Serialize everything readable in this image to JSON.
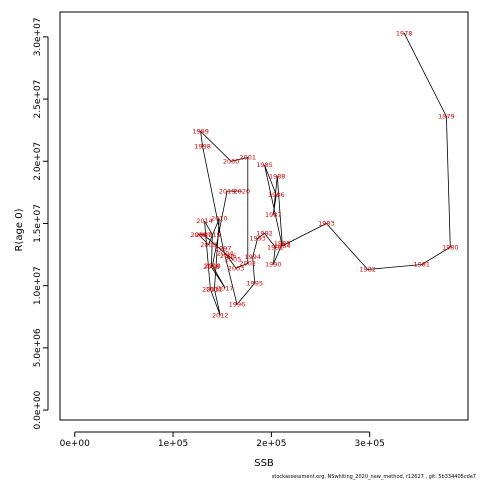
{
  "chart_data": {
    "type": "line",
    "xlabel": "SSB",
    "ylabel": "R(age 0)",
    "xlim": [
      -15000,
      400000
    ],
    "ylim": [
      -800000,
      32000000
    ],
    "x_ticks": [
      {
        "value": 0,
        "label": "0e+00"
      },
      {
        "value": 100000,
        "label": "1e+05"
      },
      {
        "value": 200000,
        "label": "2e+05"
      },
      {
        "value": 300000,
        "label": "3e+05"
      }
    ],
    "y_ticks": [
      {
        "value": 0,
        "label": "0.0e+00"
      },
      {
        "value": 5000000,
        "label": "5.0e+06"
      },
      {
        "value": 10000000,
        "label": "1.0e+07"
      },
      {
        "value": 15000000,
        "label": "1.5e+07"
      },
      {
        "value": 20000000,
        "label": "2.0e+07"
      },
      {
        "value": 25000000,
        "label": "2.5e+07"
      },
      {
        "value": 30000000,
        "label": "3.0e+07"
      }
    ],
    "points": [
      {
        "label": "1978",
        "x": 335000,
        "y": 30300000
      },
      {
        "label": "1979",
        "x": 378000,
        "y": 23600000
      },
      {
        "label": "1980",
        "x": 382000,
        "y": 13100000
      },
      {
        "label": "1981",
        "x": 353000,
        "y": 11700000
      },
      {
        "label": "1982",
        "x": 298000,
        "y": 11300000
      },
      {
        "label": "1983",
        "x": 256000,
        "y": 15000000
      },
      {
        "label": "1984",
        "x": 211000,
        "y": 13200000
      },
      {
        "label": "1985",
        "x": 193000,
        "y": 19700000
      },
      {
        "label": "1986",
        "x": 205000,
        "y": 17300000
      },
      {
        "label": "1987",
        "x": 202000,
        "y": 15700000
      },
      {
        "label": "1988",
        "x": 206000,
        "y": 18800000
      },
      {
        "label": "1989",
        "x": 211000,
        "y": 13400000
      },
      {
        "label": "1990",
        "x": 202000,
        "y": 11700000
      },
      {
        "label": "1991",
        "x": 204000,
        "y": 13100000
      },
      {
        "label": "1992",
        "x": 193000,
        "y": 14200000
      },
      {
        "label": "1993",
        "x": 186000,
        "y": 13800000
      },
      {
        "label": "1994",
        "x": 181000,
        "y": 12300000
      },
      {
        "label": "1995",
        "x": 183000,
        "y": 10200000
      },
      {
        "label": "1996",
        "x": 165000,
        "y": 8500000
      },
      {
        "label": "1997",
        "x": 151000,
        "y": 13000000
      },
      {
        "label": "1998",
        "x": 130000,
        "y": 21200000
      },
      {
        "label": "1999",
        "x": 128000,
        "y": 22400000
      },
      {
        "label": "2000",
        "x": 159000,
        "y": 20000000
      },
      {
        "label": "2001",
        "x": 176000,
        "y": 20300000
      },
      {
        "label": "2002",
        "x": 176000,
        "y": 11800000
      },
      {
        "label": "2003",
        "x": 164000,
        "y": 11400000
      },
      {
        "label": "2004",
        "x": 153000,
        "y": 12600000
      },
      {
        "label": "2005",
        "x": 161000,
        "y": 12100000
      },
      {
        "label": "2006",
        "x": 156000,
        "y": 12400000
      },
      {
        "label": "2007",
        "x": 131000,
        "y": 14100000
      },
      {
        "label": "2008",
        "x": 126000,
        "y": 14100000
      },
      {
        "label": "2009",
        "x": 136000,
        "y": 13300000
      },
      {
        "label": "2010",
        "x": 147000,
        "y": 15400000
      },
      {
        "label": "2011",
        "x": 142000,
        "y": 9700000
      },
      {
        "label": "2012",
        "x": 148000,
        "y": 7600000
      },
      {
        "label": "2013",
        "x": 138000,
        "y": 9700000
      },
      {
        "label": "2014",
        "x": 132000,
        "y": 15200000
      },
      {
        "label": "2015",
        "x": 140000,
        "y": 14100000
      },
      {
        "label": "2016",
        "x": 139000,
        "y": 11500000
      },
      {
        "label": "2017",
        "x": 153000,
        "y": 9800000
      },
      {
        "label": "2018",
        "x": 140000,
        "y": 11600000
      },
      {
        "label": "2019",
        "x": 155000,
        "y": 17600000
      },
      {
        "label": "2020",
        "x": 170000,
        "y": 17600000
      }
    ]
  },
  "footer_text": "stockassessment.org, NSwhiting_2020_new_method, r12627 , git: 5b334405cda7"
}
